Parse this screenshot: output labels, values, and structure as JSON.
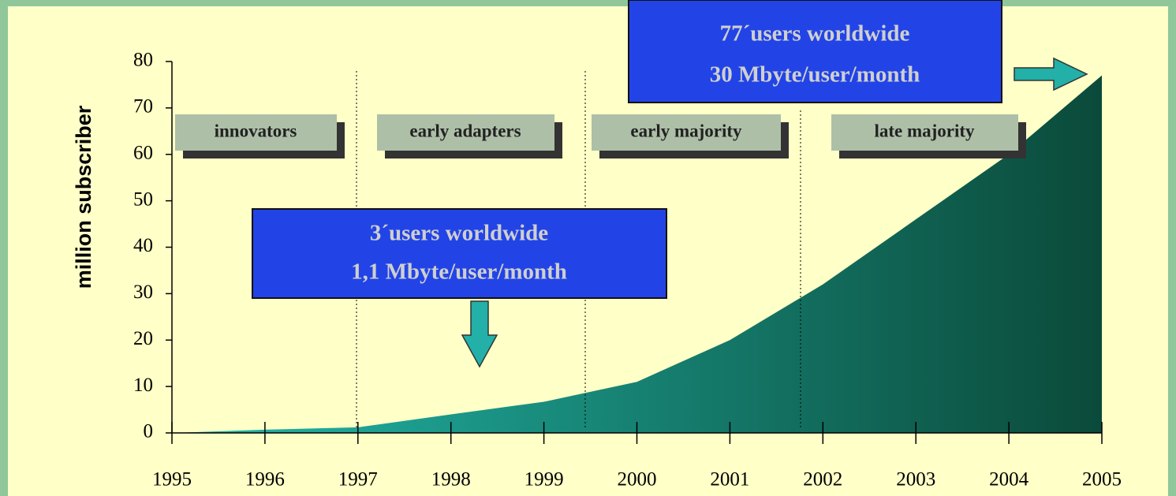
{
  "chart_data": {
    "type": "area",
    "ylabel": "million subscriber",
    "x": [
      1995,
      1996,
      1997,
      1998,
      1999,
      2000,
      2001,
      2002,
      2003,
      2004,
      2005
    ],
    "values": [
      0,
      0.7,
      1.2,
      4,
      6.7,
      11,
      20,
      32,
      46,
      60,
      77
    ],
    "xlim": [
      1995,
      2005
    ],
    "ylim": [
      0,
      80
    ],
    "xticks": [
      1995,
      1996,
      1997,
      1998,
      1999,
      2000,
      2001,
      2002,
      2003,
      2004,
      2005
    ],
    "yticks": [
      0,
      10,
      20,
      30,
      40,
      50,
      60,
      70,
      80
    ],
    "color": [
      "#22b8aa",
      "#0b4a3a"
    ],
    "phases": [
      "innovators",
      "early adapters",
      "early majority",
      "late majority"
    ],
    "callouts": [
      [
        "3´users worldwide",
        "1,1 Mbyte/user/month"
      ],
      [
        "77´users worldwide",
        "30 Mbyte/user/month"
      ]
    ]
  }
}
